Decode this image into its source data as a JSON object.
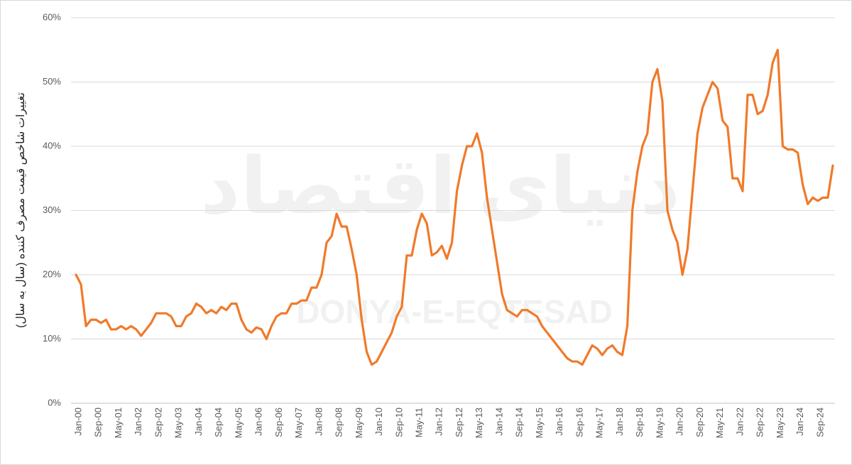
{
  "chart_data": {
    "type": "line",
    "y_label": "تغییرات شاخص قیمت مصرف کننده (سال به سال)",
    "watermark": "دنیای اقتصاد",
    "watermark_latin": "DONYA-E-EQTESAD",
    "categories": [
      "Jan-00",
      null,
      null,
      null,
      "Sep-00",
      null,
      null,
      null,
      "May-01",
      null,
      null,
      null,
      "Jan-02",
      null,
      null,
      null,
      "Sep-02",
      null,
      null,
      null,
      "May-03",
      null,
      null,
      null,
      "Jan-04",
      null,
      null,
      null,
      "Sep-04",
      null,
      null,
      null,
      "May-05",
      null,
      null,
      null,
      "Jan-06",
      null,
      null,
      null,
      "Sep-06",
      null,
      null,
      null,
      "May-07",
      null,
      null,
      null,
      "Jan-08",
      null,
      null,
      null,
      "Sep-08",
      null,
      null,
      null,
      "May-09",
      null,
      null,
      null,
      "Jan-10",
      null,
      null,
      null,
      "Sep-10",
      null,
      null,
      null,
      "May-11",
      null,
      null,
      null,
      "Jan-12",
      null,
      null,
      null,
      "Sep-12",
      null,
      null,
      null,
      "May-13",
      null,
      null,
      null,
      "Jan-14",
      null,
      null,
      null,
      "Sep-14",
      null,
      null,
      null,
      "May-15",
      null,
      null,
      null,
      "Jan-16",
      null,
      null,
      null,
      "Sep-16",
      null,
      null,
      null,
      "May-17",
      null,
      null,
      null,
      "Jan-18",
      null,
      null,
      null,
      "Sep-18",
      null,
      null,
      null,
      "May-19",
      null,
      null,
      null,
      "Jan-20",
      null,
      null,
      null,
      "Sep-20",
      null,
      null,
      null,
      "May-21",
      null,
      null,
      null,
      "Jan-22",
      null,
      null,
      null,
      "Sep-22",
      null,
      null,
      null,
      "May-23",
      null,
      null,
      null,
      "Jan-24",
      null,
      null,
      null,
      "Sep-24",
      null,
      null,
      null
    ],
    "values": [
      20,
      18.5,
      12,
      13,
      13,
      12.5,
      13,
      11.5,
      11.5,
      12,
      11.5,
      12,
      11.5,
      10.5,
      11.5,
      12.5,
      14,
      14,
      14,
      13.5,
      12,
      12,
      13.5,
      14,
      15.5,
      15,
      14,
      14.5,
      14,
      15,
      14.5,
      15.5,
      15.5,
      13,
      11.5,
      11,
      11.8,
      11.5,
      10,
      12,
      13.5,
      14,
      14,
      15.5,
      15.5,
      16,
      16,
      18,
      18,
      20,
      25,
      26,
      29.5,
      27.5,
      27.5,
      24,
      20,
      13,
      8,
      6,
      6.5,
      8,
      9.5,
      11,
      13.5,
      15,
      23,
      23,
      27,
      29.5,
      28,
      23,
      23.5,
      24.5,
      22.5,
      25,
      33,
      37,
      40,
      40,
      42,
      39,
      32,
      27,
      22,
      17,
      14.5,
      14,
      13.5,
      14.5,
      14.5,
      14,
      13.5,
      12,
      11,
      10,
      9,
      8,
      7,
      6.5,
      6.5,
      6,
      7.5,
      9,
      8.5,
      7.5,
      8.5,
      9,
      8,
      7.5,
      12,
      30,
      36,
      40,
      42,
      50,
      52,
      47,
      30,
      27,
      25,
      20,
      24,
      33,
      42,
      46,
      48,
      50,
      49,
      44,
      43,
      35,
      35,
      33,
      48,
      48,
      45,
      45.5,
      48,
      53,
      55,
      40,
      39.5,
      39.5,
      39,
      34,
      31,
      32,
      31.5,
      32,
      32,
      37
    ],
    "color": "#f07a2a",
    "ylim": [
      0,
      60
    ],
    "yticks": [
      {
        "value": 0,
        "label": "0%"
      },
      {
        "value": 10,
        "label": "10%"
      },
      {
        "value": 20,
        "label": "20%"
      },
      {
        "value": 30,
        "label": "30%"
      },
      {
        "value": 40,
        "label": "40%"
      },
      {
        "value": 50,
        "label": "50%"
      },
      {
        "value": 60,
        "label": "60%"
      }
    ],
    "grid": true
  }
}
